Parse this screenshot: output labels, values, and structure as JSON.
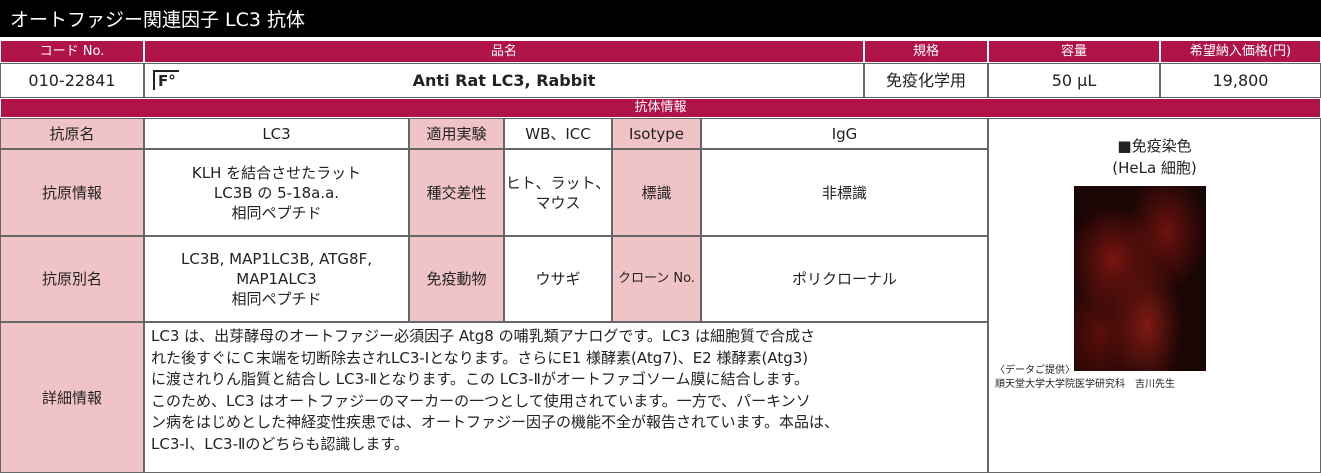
{
  "header": {
    "title": "オートファジー関連因子 LC3 抗体"
  },
  "product_table": {
    "columns": [
      "コード No.",
      "品名",
      "規格",
      "容量",
      "希望納入価格(円)"
    ],
    "row": {
      "code": "010-22841",
      "icon": "F°",
      "name": "Anti Rat LC3, Rabbit",
      "spec": "免疫化学用",
      "volume": "50 μL",
      "price": "19,800"
    }
  },
  "info": {
    "title": "抗体情報",
    "rows": [
      [
        "抗原名",
        "LC3",
        "適用実験",
        "WB、ICC",
        "Isotype",
        "IgG"
      ],
      [
        "抗原情報",
        "KLH を結合させたラット\nLC3B の 5-18a.a.\n相同ペプチド",
        "種交差性",
        "ヒト、ラット、\nマウス",
        "標識",
        "非標識"
      ],
      [
        "抗原別名",
        "LC3B, MAP1LC3B, ATG8F,\nMAP1ALC3\n相同ペプチド",
        "免疫動物",
        "ウサギ",
        "クローン No.",
        "ポリクローナル"
      ]
    ],
    "detail": {
      "label": "詳細情報",
      "lines": [
        "LC3 は、出芽酵母のオートファジー必須因子 Atg8 の哺乳類アナログです。LC3 は細胞質で合成さ",
        "れた後すぐにＣ末端を切断除去されLC3-Ⅰとなります。さらにE1 様酵素(Atg7)、E2 様酵素(Atg3)",
        "に渡されりん脂質と結合し LC3-Ⅱとなります。この LC3-Ⅱがオートファゴソーム膜に結合します。",
        "このため、LC3 はオートファジーのマーカーの一つとして使用されています。一方で、パーキンソ",
        "ン病をはじめとした神経変性疾患では、オートファジー因子の機能不全が報告されています。本品は、",
        "LC3-Ⅰ、LC3-Ⅱのどちらも認識します。"
      ]
    },
    "image": {
      "caption": "■免疫染色",
      "subcaption": "(HeLa 細胞)",
      "credit": [
        "〈データご提供〉",
        "順天堂大学大学院医学研究科　吉川先生"
      ]
    }
  }
}
